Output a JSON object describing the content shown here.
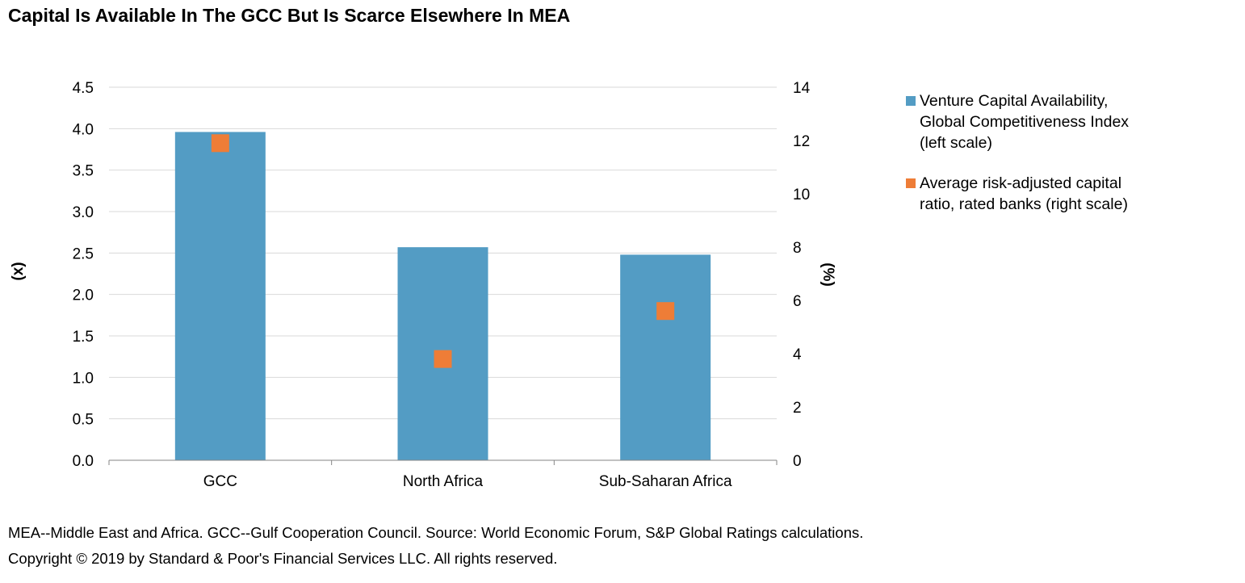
{
  "title": "Capital Is Available In The GCC But Is Scarce Elsewhere In MEA",
  "chart_data": {
    "type": "bar",
    "title": "Capital Is Available In The GCC But Is Scarce Elsewhere In MEA",
    "categories": [
      "GCC",
      "North Africa",
      "Sub-Saharan Africa"
    ],
    "series": [
      {
        "name": "Venture Capital Availability, Global Competitiveness Index (left scale)",
        "type": "bar",
        "axis": "left",
        "color": "#539CC4",
        "values": [
          3.96,
          2.57,
          2.48
        ]
      },
      {
        "name": "Average risk-adjusted capital ratio, rated banks (right scale)",
        "type": "scatter",
        "axis": "right",
        "color": "#EE7D37",
        "values": [
          11.9,
          3.8,
          5.6
        ]
      }
    ],
    "ylabel_left": "(x)",
    "ylabel_right": "(%)",
    "ylim_left": [
      0,
      4.5
    ],
    "ylim_right": [
      0,
      14
    ],
    "yticks_left": [
      "0.0",
      "0.5",
      "1.0",
      "1.5",
      "2.0",
      "2.5",
      "3.0",
      "3.5",
      "4.0",
      "4.5"
    ],
    "yticks_right": [
      "0",
      "2",
      "4",
      "6",
      "8",
      "10",
      "12",
      "14"
    ],
    "grid": true,
    "legend_position": "right"
  },
  "legend": {
    "items": [
      {
        "label": "Venture Capital Availability, Global Competitiveness Index (left scale)",
        "color": "#539CC4",
        "line1": "Venture Capital Availability,",
        "line2": "Global Competitiveness Index",
        "line3": "(left scale)"
      },
      {
        "label": "Average risk-adjusted capital ratio, rated banks (right scale)",
        "color": "#EE7D37",
        "line1": "Average risk-adjusted capital",
        "line2": "ratio, rated banks (right scale)"
      }
    ]
  },
  "footnote": "MEA--Middle East and Africa. GCC--Gulf Cooperation Council. Source: World Economic Forum, S&P Global Ratings calculations.",
  "copyright": "Copyright © 2019 by Standard & Poor's Financial Services LLC. All rights reserved."
}
